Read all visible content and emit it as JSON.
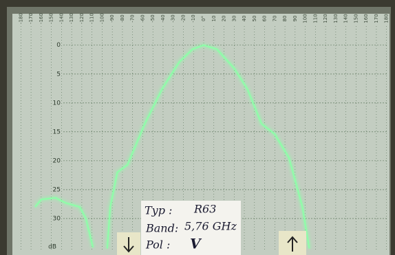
{
  "chart_data": {
    "type": "line",
    "y_label": "dB",
    "x": [
      -166,
      -160,
      -146,
      -136,
      -122,
      -116,
      -109,
      null,
      -95,
      -92,
      -85,
      -75,
      -58,
      -41,
      -24,
      -11,
      0,
      13,
      30,
      43,
      57,
      70,
      84,
      97,
      104
    ],
    "series": [
      {
        "color": "#8dffa8",
        "values": [
          28,
          26.7,
          26.4,
          27.3,
          28,
          30,
          35,
          null,
          35.2,
          28,
          22,
          20.7,
          13.6,
          7.6,
          2.9,
          0.7,
          0,
          0.7,
          4,
          7.6,
          13.6,
          15.4,
          19.5,
          27.9,
          35.2
        ]
      }
    ],
    "xlim": [
      -187,
      187
    ],
    "ylim": [
      -3.3,
      35.6
    ],
    "y_inverted": true,
    "grid": true,
    "xticks": [
      -180,
      -170,
      -160,
      -150,
      -140,
      -130,
      -120,
      -110,
      -100,
      -90,
      -80,
      -70,
      -60,
      -50,
      -40,
      -30,
      -20,
      -10,
      {
        "value": 0,
        "label": "0°"
      },
      10,
      20,
      30,
      40,
      50,
      60,
      70,
      80,
      90,
      100,
      110,
      120,
      130,
      140,
      150,
      160,
      170,
      180
    ],
    "yticks": [
      0,
      5,
      10,
      15,
      20,
      25,
      30
    ],
    "card": {
      "type_label": "Typ :",
      "type_value": "R63",
      "band_label": "Band:",
      "band_value": "5,76 GHz",
      "pol_label": "Pol :",
      "pol_value": "V"
    }
  }
}
